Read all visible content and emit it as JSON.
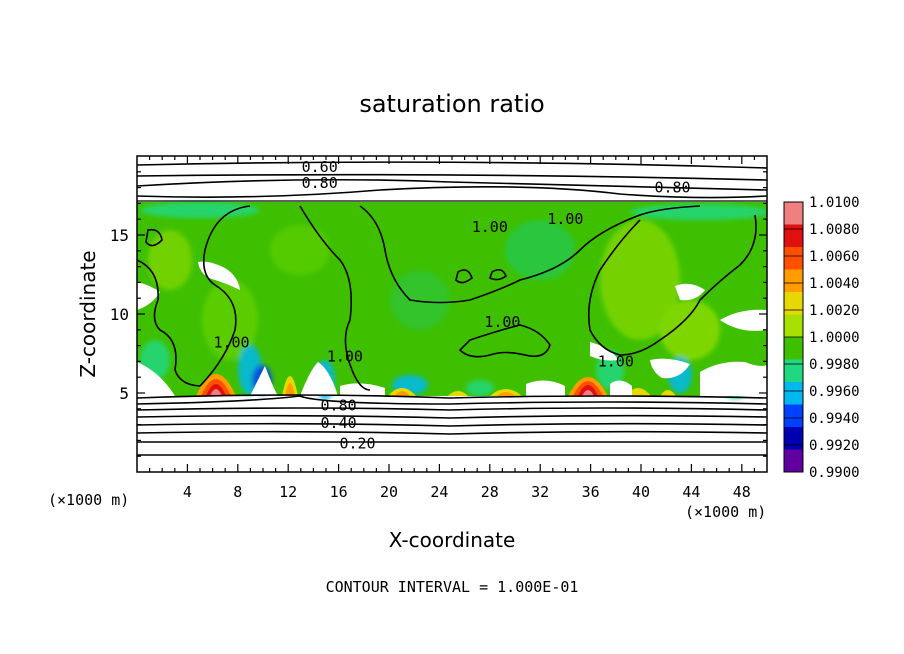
{
  "chart_data": {
    "type": "heatmap",
    "title": "saturation ratio",
    "xlabel": "X-coordinate",
    "ylabel": "Z-coordinate",
    "x_unit_label": "(×1000 m)",
    "x_unit_label_right": "(×1000 m)",
    "footer": "CONTOUR INTERVAL = 1.000E-01",
    "xlim": [
      0,
      50
    ],
    "ylim": [
      0,
      20
    ],
    "x_ticks": [
      4,
      8,
      12,
      16,
      20,
      24,
      28,
      32,
      36,
      40,
      44,
      48
    ],
    "y_ticks": [
      5,
      10,
      15
    ],
    "colorbar": {
      "range": [
        0.99,
        1.01
      ],
      "labels": [
        "1.0100",
        "1.0080",
        "1.0060",
        "1.0040",
        "1.0020",
        "1.0000",
        "0.9980",
        "0.9960",
        "0.9940",
        "0.9920",
        "0.9900"
      ],
      "colors": [
        "#f08080",
        "#e01010",
        "#ff5000",
        "#ff9c00",
        "#e6d800",
        "#a8e000",
        "#3ec000",
        "#20d880",
        "#00b8f0",
        "#0040ff",
        "#0000b0",
        "#6000a0"
      ]
    },
    "contour_labels": [
      {
        "text": "0.60",
        "x": 14.5,
        "z": 19.3
      },
      {
        "text": "0.80",
        "x": 14.5,
        "z": 18.3
      },
      {
        "text": "0.80",
        "x": 42.5,
        "z": 18.0
      },
      {
        "text": "1.00",
        "x": 28.0,
        "z": 15.5
      },
      {
        "text": "1.00",
        "x": 34.0,
        "z": 16.0
      },
      {
        "text": "1.00",
        "x": 7.5,
        "z": 8.2
      },
      {
        "text": "1.00",
        "x": 16.5,
        "z": 7.3
      },
      {
        "text": "1.00",
        "x": 29.0,
        "z": 9.5
      },
      {
        "text": "1.00",
        "x": 38.0,
        "z": 7.0
      },
      {
        "text": "0.80",
        "x": 16.0,
        "z": 4.2
      },
      {
        "text": "0.40",
        "x": 16.0,
        "z": 3.1
      },
      {
        "text": "0.20",
        "x": 17.5,
        "z": 1.8
      }
    ]
  }
}
